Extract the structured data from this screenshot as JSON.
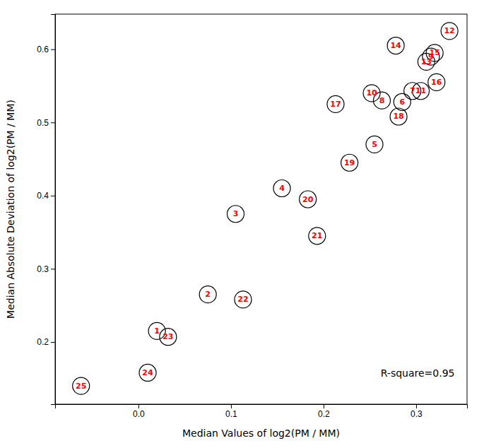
{
  "chart_data": {
    "type": "scatter",
    "labels": [
      "1",
      "2",
      "3",
      "4",
      "5",
      "6",
      "7",
      "8",
      "9",
      "10",
      "11",
      "12",
      "13",
      "14",
      "15",
      "16",
      "17",
      "18",
      "19",
      "20",
      "21",
      "22",
      "23",
      "24",
      "25"
    ],
    "x": [
      0.02,
      0.075,
      0.105,
      0.155,
      0.255,
      0.285,
      0.296,
      0.263,
      0.316,
      0.252,
      0.305,
      0.336,
      0.311,
      0.278,
      0.32,
      0.322,
      0.213,
      0.281,
      0.228,
      0.183,
      0.193,
      0.113,
      0.032,
      0.01,
      -0.062
    ],
    "values": [
      0.215,
      0.265,
      0.375,
      0.41,
      0.47,
      0.528,
      0.543,
      0.53,
      0.59,
      0.54,
      0.543,
      0.625,
      0.583,
      0.605,
      0.595,
      0.555,
      0.525,
      0.508,
      0.445,
      0.395,
      0.345,
      0.258,
      0.207,
      0.158,
      0.14
    ],
    "annotation": "R-square=0.95",
    "xlabel": "Median Values of log2(PM / MM)",
    "ylabel": "Median Absolute Deviation of log2(PM / MM)",
    "xlim": [
      -0.09,
      0.355
    ],
    "ylim": [
      0.115,
      0.648
    ],
    "xticks": [
      {
        "value": 0,
        "label": "0.0"
      },
      0.1,
      0.2,
      0.3
    ],
    "yticks": [
      0.2,
      0.3,
      0.4,
      0.5,
      0.6
    ],
    "marker": "circle",
    "color": "red"
  }
}
